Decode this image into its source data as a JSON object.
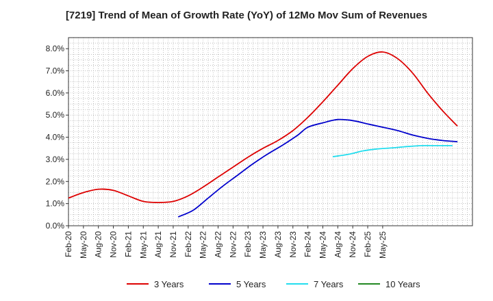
{
  "chart_data": {
    "type": "line",
    "title": "[7219]  Trend of Mean of Growth Rate (YoY) of 12Mo Mov Sum of Revenues",
    "xlabel": "",
    "ylabel": "",
    "x_range": [
      0,
      81
    ],
    "ylim": [
      0,
      8.5
    ],
    "y_ticks": [
      0,
      1,
      2,
      3,
      4,
      5,
      6,
      7,
      8
    ],
    "y_tick_labels": [
      "0.0%",
      "1.0%",
      "2.0%",
      "3.0%",
      "4.0%",
      "5.0%",
      "6.0%",
      "7.0%",
      "8.0%"
    ],
    "x_ticks": [
      "Feb-20",
      "May-20",
      "Aug-20",
      "Nov-20",
      "Feb-21",
      "May-21",
      "Aug-21",
      "Nov-21",
      "Feb-22",
      "May-22",
      "Aug-22",
      "Nov-22",
      "Feb-23",
      "May-23",
      "Aug-23",
      "Nov-23",
      "Feb-24",
      "May-24",
      "Aug-24",
      "Nov-24",
      "Feb-25",
      "May-25"
    ],
    "grid": true,
    "legend_position": "bottom",
    "series": [
      {
        "name": "3 Years",
        "color": "#dd0000",
        "points": [
          [
            0,
            1.25
          ],
          [
            3,
            1.5
          ],
          [
            6,
            1.65
          ],
          [
            9,
            1.6
          ],
          [
            12,
            1.35
          ],
          [
            15,
            1.1
          ],
          [
            18,
            1.05
          ],
          [
            21,
            1.1
          ],
          [
            24,
            1.35
          ],
          [
            27,
            1.75
          ],
          [
            30,
            2.2
          ],
          [
            33,
            2.65
          ],
          [
            36,
            3.1
          ],
          [
            39,
            3.5
          ],
          [
            42,
            3.85
          ],
          [
            45,
            4.3
          ],
          [
            48,
            4.9
          ],
          [
            51,
            5.6
          ],
          [
            54,
            6.35
          ],
          [
            57,
            7.1
          ],
          [
            60,
            7.65
          ],
          [
            63,
            7.85
          ],
          [
            66,
            7.55
          ],
          [
            69,
            6.9
          ],
          [
            72,
            6.0
          ],
          [
            75,
            5.2
          ],
          [
            78,
            4.5
          ]
        ]
      },
      {
        "name": "5 Years",
        "color": "#0000cc",
        "points": [
          [
            22,
            0.4
          ],
          [
            25,
            0.7
          ],
          [
            28,
            1.25
          ],
          [
            31,
            1.8
          ],
          [
            34,
            2.3
          ],
          [
            37,
            2.8
          ],
          [
            40,
            3.25
          ],
          [
            43,
            3.65
          ],
          [
            46,
            4.1
          ],
          [
            48,
            4.45
          ],
          [
            51,
            4.65
          ],
          [
            54,
            4.8
          ],
          [
            57,
            4.75
          ],
          [
            60,
            4.6
          ],
          [
            63,
            4.45
          ],
          [
            66,
            4.3
          ],
          [
            69,
            4.1
          ],
          [
            72,
            3.95
          ],
          [
            75,
            3.85
          ],
          [
            78,
            3.8
          ]
        ]
      },
      {
        "name": "7 Years",
        "color": "#22ddee",
        "points": [
          [
            53,
            3.12
          ],
          [
            56,
            3.22
          ],
          [
            59,
            3.38
          ],
          [
            62,
            3.47
          ],
          [
            65,
            3.52
          ],
          [
            68,
            3.58
          ],
          [
            71,
            3.62
          ],
          [
            74,
            3.62
          ],
          [
            77,
            3.62
          ]
        ]
      },
      {
        "name": "10 Years",
        "color": "#228822",
        "points": []
      }
    ]
  }
}
